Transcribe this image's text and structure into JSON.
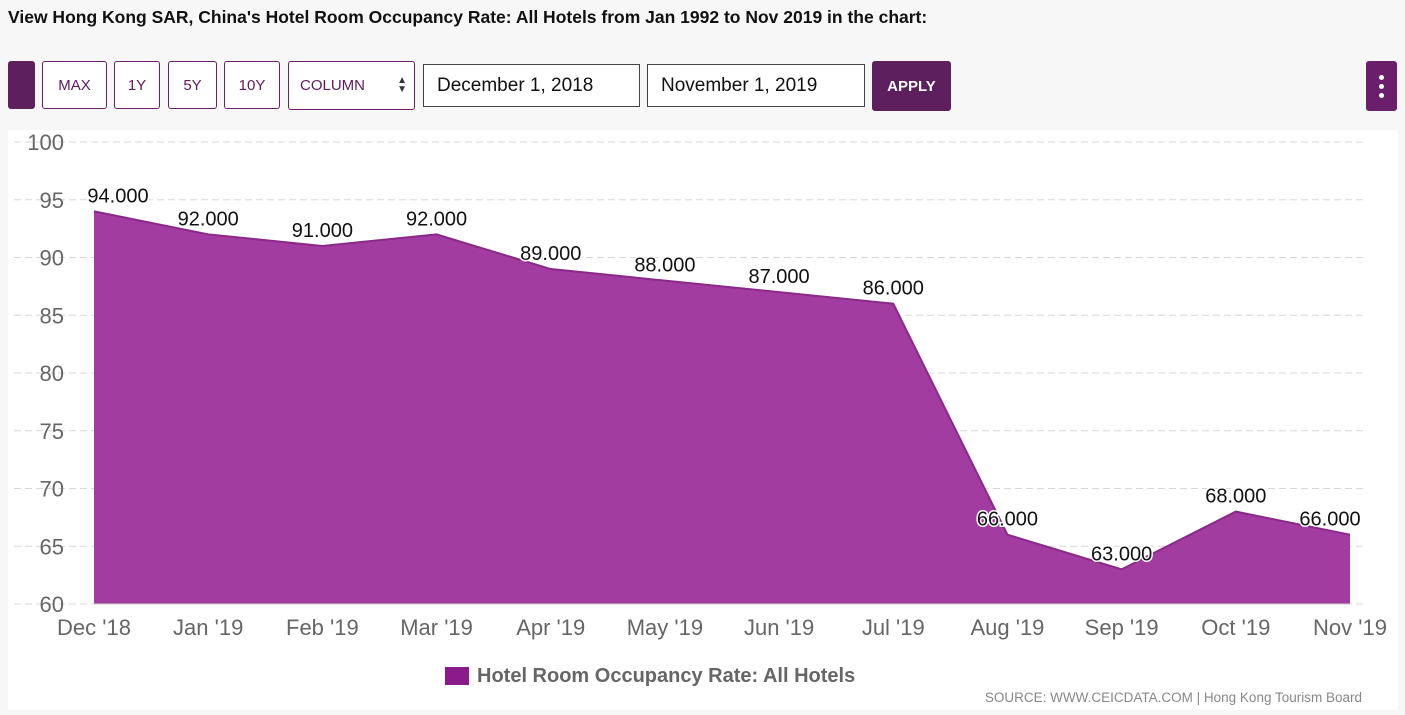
{
  "heading": "View Hong Kong SAR, China's Hotel Room Occupancy Rate: All Hotels from Jan 1992 to Nov 2019 in the chart:",
  "toolbar": {
    "range_buttons": [
      "MAX",
      "1Y",
      "5Y",
      "10Y"
    ],
    "chart_type_select": "COLUMN",
    "start_date": "December 1, 2018",
    "end_date": "November 1, 2019",
    "apply_label": "APPLY"
  },
  "colors": {
    "accent": "#6b1f6b",
    "area_fill": "#a23ca0",
    "area_stroke": "#8a2a88",
    "legend_swatch": "#8b1a8b"
  },
  "chart_data": {
    "type": "area",
    "categories": [
      "Dec '18",
      "Jan '19",
      "Feb '19",
      "Mar '19",
      "Apr '19",
      "May '19",
      "Jun '19",
      "Jul '19",
      "Aug '19",
      "Sep '19",
      "Oct '19",
      "Nov '19"
    ],
    "series": [
      {
        "name": "Hotel Room Occupancy Rate: All Hotels",
        "values": [
          94,
          92,
          91,
          92,
          89,
          88,
          87,
          86,
          66,
          63,
          68,
          66
        ],
        "data_labels": [
          "94.000",
          "92.000",
          "91.000",
          "92.000",
          "89.000",
          "88.000",
          "87.000",
          "86.000",
          "66.000",
          "63.000",
          "68.000",
          "66.000"
        ]
      }
    ],
    "y_ticks": [
      "60",
      "65",
      "70",
      "75",
      "80",
      "85",
      "90",
      "95",
      "100"
    ],
    "ylim": [
      60,
      100
    ],
    "grid": true,
    "legend_position": "bottom"
  },
  "source": "SOURCE: WWW.CEICDATA.COM | Hong Kong Tourism Board"
}
